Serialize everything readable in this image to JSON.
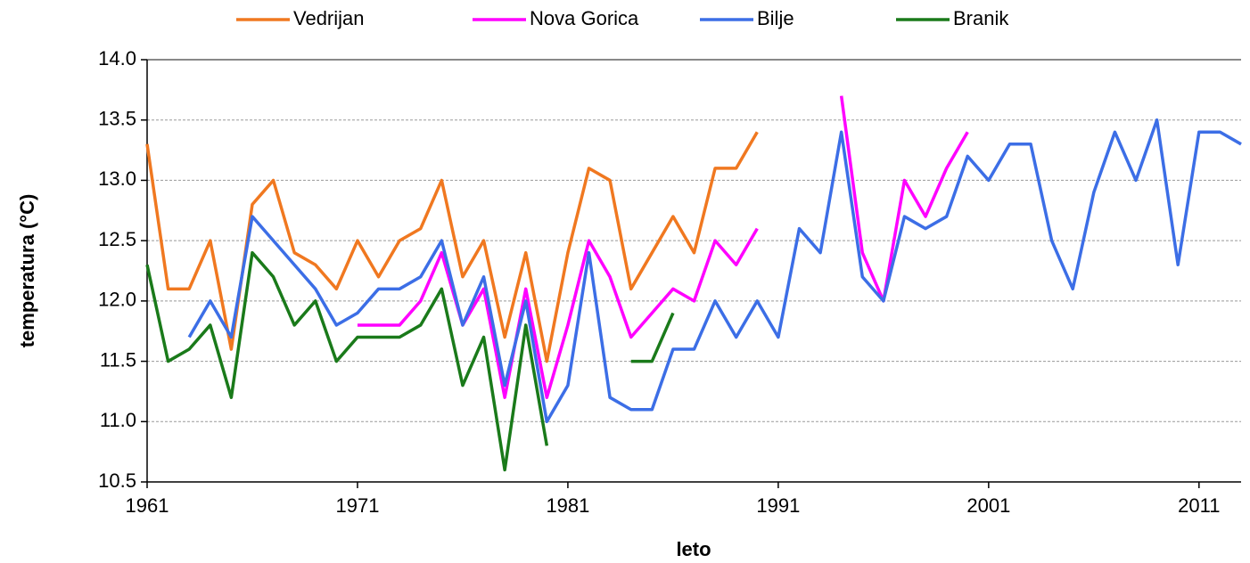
{
  "chart_data": {
    "type": "line",
    "x": [
      1961,
      1962,
      1963,
      1964,
      1965,
      1966,
      1967,
      1968,
      1969,
      1970,
      1971,
      1972,
      1973,
      1974,
      1975,
      1976,
      1977,
      1978,
      1979,
      1980,
      1981,
      1982,
      1983,
      1984,
      1985,
      1986,
      1987,
      1988,
      1989,
      1990,
      1991,
      1992,
      1993,
      1994,
      1995,
      1996,
      1997,
      1998,
      1999,
      2000,
      2001,
      2002,
      2003,
      2004,
      2005,
      2006,
      2007,
      2008,
      2009,
      2010,
      2011,
      2012,
      2013
    ],
    "series": [
      {
        "name": "Vedrijan",
        "color": "#f07820",
        "values": [
          13.3,
          12.1,
          12.1,
          12.5,
          11.6,
          12.8,
          13.0,
          12.4,
          12.3,
          12.1,
          12.5,
          12.2,
          12.5,
          12.6,
          13.0,
          12.2,
          12.5,
          11.7,
          12.4,
          11.5,
          12.4,
          13.1,
          13.0,
          12.1,
          12.4,
          12.7,
          12.4,
          13.1,
          13.1,
          13.4,
          null,
          null,
          null,
          null,
          null,
          null,
          null,
          null,
          null,
          null,
          null,
          null,
          null,
          null,
          null,
          null,
          null,
          null,
          null,
          null,
          null,
          null,
          null
        ]
      },
      {
        "name": "Nova Gorica",
        "color": "#ff00ff",
        "values": [
          null,
          null,
          null,
          null,
          null,
          null,
          null,
          null,
          null,
          null,
          11.8,
          11.8,
          11.8,
          12.0,
          12.4,
          11.8,
          12.1,
          11.2,
          12.1,
          11.2,
          11.8,
          12.5,
          12.2,
          11.7,
          11.9,
          12.1,
          12.0,
          12.5,
          12.3,
          12.6,
          null,
          null,
          null,
          13.7,
          12.4,
          12.0,
          13.0,
          12.7,
          13.1,
          13.4,
          null,
          null,
          null,
          null,
          null,
          null,
          null,
          null,
          null,
          null,
          null,
          null,
          null
        ]
      },
      {
        "name": "Bilje",
        "color": "#3c6ee6",
        "values": [
          null,
          null,
          11.7,
          12.0,
          11.7,
          12.7,
          12.5,
          12.3,
          12.1,
          11.8,
          11.9,
          12.1,
          12.1,
          12.2,
          12.5,
          11.8,
          12.2,
          11.3,
          12.0,
          11.0,
          11.3,
          12.4,
          11.2,
          11.1,
          11.1,
          11.6,
          11.6,
          12.0,
          11.7,
          12.0,
          11.7,
          12.6,
          12.4,
          13.4,
          12.2,
          12.0,
          12.7,
          12.6,
          12.7,
          13.2,
          13.0,
          13.3,
          13.3,
          12.5,
          12.1,
          12.9,
          13.4,
          13.0,
          13.5,
          12.3,
          13.4,
          13.4,
          13.3
        ]
      },
      {
        "name": "Branik",
        "color": "#1a7a1a",
        "values": [
          12.3,
          11.5,
          11.6,
          11.8,
          11.2,
          12.4,
          12.2,
          11.8,
          12.0,
          11.5,
          11.7,
          11.7,
          11.7,
          11.8,
          12.1,
          11.3,
          11.7,
          10.6,
          11.8,
          10.8,
          null,
          null,
          null,
          11.5,
          11.5,
          11.9,
          null,
          null,
          null,
          null,
          null,
          null,
          null,
          null,
          null,
          null,
          null,
          null,
          null,
          null,
          null,
          null,
          null,
          null,
          null,
          null,
          null,
          null,
          null,
          null,
          null,
          null,
          null
        ]
      }
    ],
    "xlabel": "leto",
    "ylabel": "temperatura (°C)",
    "xlim": [
      1961,
      2013
    ],
    "xticks": [
      1961,
      1971,
      1981,
      1991,
      2001,
      2011
    ],
    "ylim": [
      10.5,
      14
    ],
    "yticks": [
      10.5,
      {
        "value": 11,
        "label": "11.0"
      },
      11.5,
      {
        "value": 12,
        "label": "12.0"
      },
      12.5,
      {
        "value": 13,
        "label": "13.0"
      },
      13.5,
      {
        "value": 14,
        "label": "14.0"
      }
    ],
    "grid": true,
    "legend": "top"
  }
}
